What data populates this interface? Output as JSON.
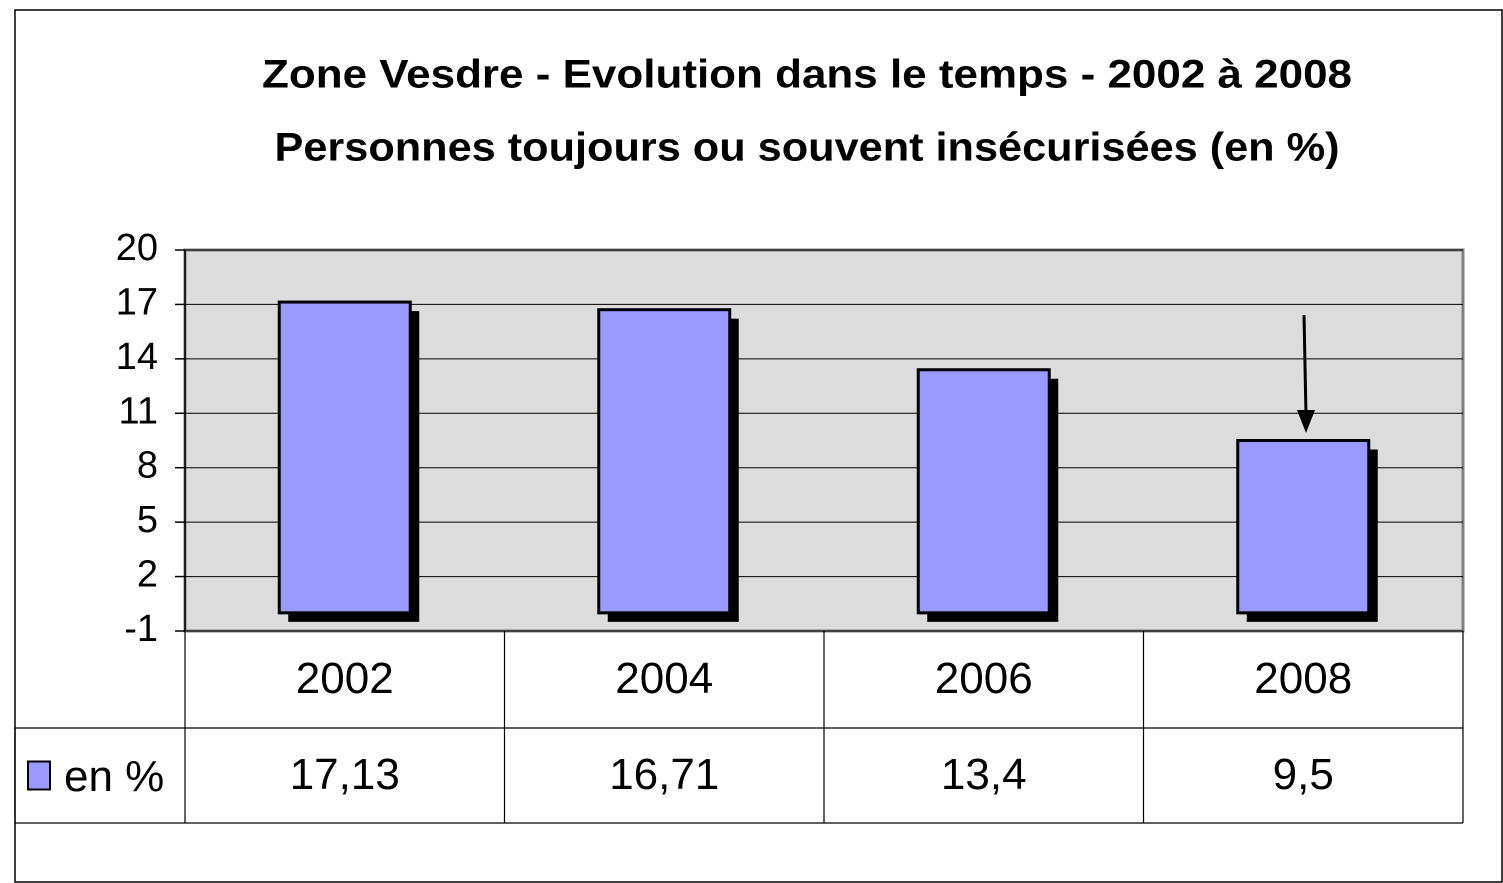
{
  "chart_data": {
    "type": "bar",
    "title": "Zone Vesdre - Evolution dans le temps - 2002 à 2008",
    "subtitle": "Personnes toujours ou souvent insécurisées (en %)",
    "categories": [
      "2002",
      "2004",
      "2006",
      "2008"
    ],
    "series": [
      {
        "name": "en %",
        "color": "#9999ff",
        "values": [
          17.13,
          16.71,
          13.4,
          9.5
        ],
        "value_labels": [
          "17,13",
          "16,71",
          "13,4",
          "9,5"
        ]
      }
    ],
    "ylim": [
      -1,
      20
    ],
    "yticks": [
      -1,
      2,
      5,
      8,
      11,
      14,
      17,
      20
    ],
    "grid": true
  }
}
